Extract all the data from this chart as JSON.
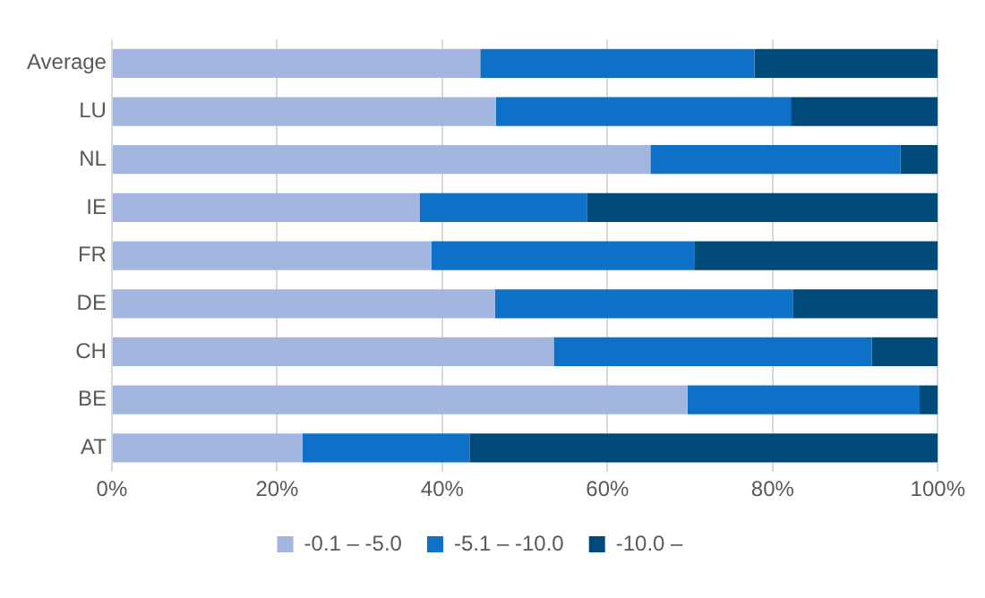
{
  "chart_data": {
    "type": "bar",
    "orientation": "horizontal",
    "stacked": true,
    "categories": [
      "Average",
      "LU",
      "NL",
      "IE",
      "FR",
      "DE",
      "CH",
      "BE",
      "AT"
    ],
    "series": [
      {
        "name": "-0.1 – -5.0",
        "color": "#a3b6df",
        "values": [
          44.6,
          46.5,
          65.2,
          37.3,
          38.7,
          46.4,
          53.5,
          69.7,
          23.1
        ]
      },
      {
        "name": "-5.1 – -10.0",
        "color": "#0f70c8",
        "values": [
          33.2,
          35.7,
          30.3,
          20.2,
          31.8,
          36.1,
          38.5,
          28.1,
          20.2
        ]
      },
      {
        "name": "-10.0 –",
        "color": "#004a7a",
        "values": [
          22.2,
          17.8,
          4.5,
          42.5,
          29.5,
          17.5,
          8.0,
          2.2,
          56.7
        ]
      }
    ],
    "xlim": [
      0,
      100
    ],
    "xticks": [
      {
        "value": 0,
        "label": "0%"
      },
      {
        "value": 20,
        "label": "20%"
      },
      {
        "value": 40,
        "label": "40%"
      },
      {
        "value": 60,
        "label": "60%"
      },
      {
        "value": 80,
        "label": "80%"
      },
      {
        "value": 100,
        "label": "100%"
      }
    ],
    "grid": "x",
    "legend": "bottom"
  }
}
